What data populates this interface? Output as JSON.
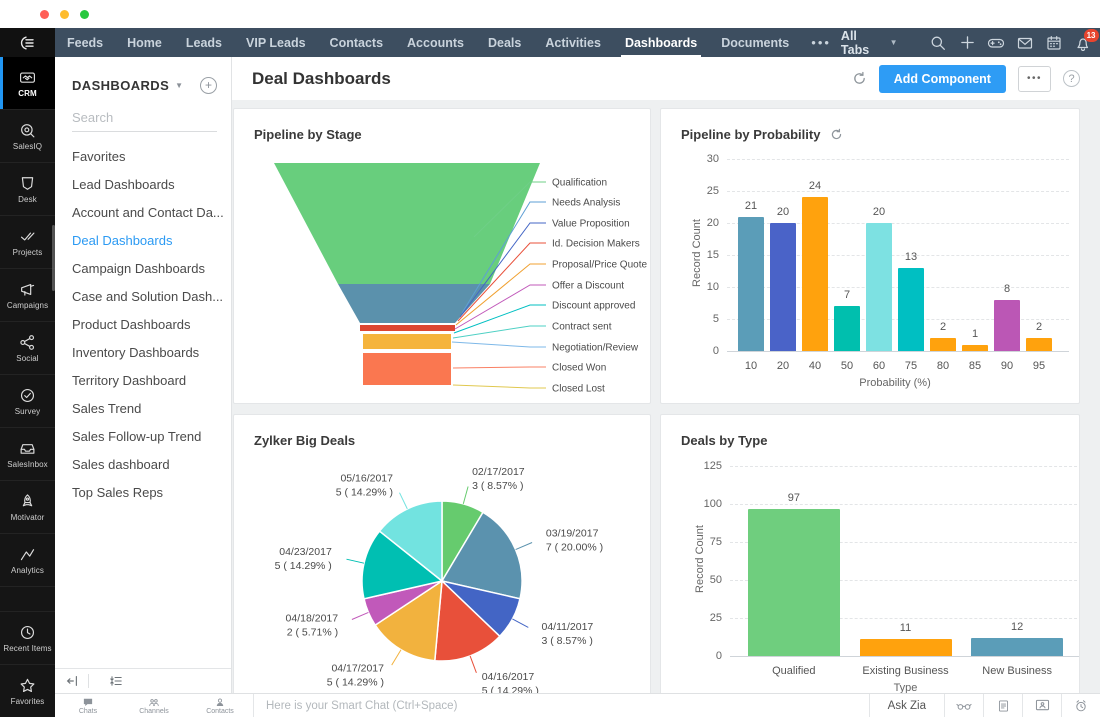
{
  "colors": {
    "accent_blue": "#2e9cf5",
    "nav_bg": "#3d4e60",
    "active_link": "#2b9af3"
  },
  "nav": {
    "tabs": [
      "Feeds",
      "Home",
      "Leads",
      "VIP Leads",
      "Contacts",
      "Accounts",
      "Deals",
      "Activities",
      "Dashboards",
      "Documents"
    ],
    "active_tab": "Dashboards",
    "more": "•••",
    "all_tabs": "All Tabs",
    "notification_count": "13"
  },
  "app_sidebar": {
    "items": [
      {
        "label": "CRM",
        "icon": "crm-icon",
        "active": true
      },
      {
        "label": "SalesIQ",
        "icon": "salesiq-icon"
      },
      {
        "label": "Desk",
        "icon": "desk-icon"
      },
      {
        "label": "Projects",
        "icon": "projects-icon"
      },
      {
        "label": "Campaigns",
        "icon": "campaigns-icon"
      },
      {
        "label": "Social",
        "icon": "social-icon"
      },
      {
        "label": "Survey",
        "icon": "survey-icon"
      },
      {
        "label": "SalesInbox",
        "icon": "salesinbox-icon"
      },
      {
        "label": "Motivator",
        "icon": "motivator-icon"
      },
      {
        "label": "Analytics",
        "icon": "analytics-icon"
      }
    ],
    "footer_items": [
      {
        "label": "Recent Items",
        "icon": "recent-items-icon"
      },
      {
        "label": "Favorites",
        "icon": "favorites-icon"
      }
    ]
  },
  "dashboards_sidebar": {
    "title": "DASHBOARDS",
    "search_placeholder": "Search",
    "items": [
      {
        "label": "Favorites"
      },
      {
        "label": "Lead Dashboards"
      },
      {
        "label": "Account and Contact Da..."
      },
      {
        "label": "Deal Dashboards",
        "active": true
      },
      {
        "label": "Campaign Dashboards"
      },
      {
        "label": "Case and Solution Dash..."
      },
      {
        "label": "Product Dashboards"
      },
      {
        "label": "Inventory Dashboards"
      },
      {
        "label": "Territory Dashboard"
      },
      {
        "label": "Sales Trend"
      },
      {
        "label": "Sales Follow-up Trend"
      },
      {
        "label": "Sales dashboard"
      },
      {
        "label": "Top Sales Reps"
      }
    ]
  },
  "header": {
    "title": "Deal Dashboards",
    "add_component": "Add Component",
    "more": "•••",
    "help": "?"
  },
  "chat_bar": {
    "tools": [
      {
        "label": "Chats",
        "icon": "chat-bubble-icon"
      },
      {
        "label": "Channels",
        "icon": "channels-icon"
      },
      {
        "label": "Contacts",
        "icon": "contacts-icon"
      }
    ],
    "input_placeholder": "Here is your Smart Chat (Ctrl+Space)",
    "ask_zia": "Ask Zia",
    "right_icons": [
      "zia-glasses-icon",
      "document-icon",
      "presentation-icon",
      "reminder-icon"
    ]
  },
  "chart_data": [
    {
      "type": "funnel",
      "title": "Pipeline by Stage",
      "stages": [
        {
          "label": "Qualification",
          "color": "#6fcf87"
        },
        {
          "label": "Needs Analysis",
          "color": "#5e9fd4"
        },
        {
          "label": "Value Proposition",
          "color": "#4365c5"
        },
        {
          "label": "Id. Decision Makers",
          "color": "#e8503a"
        },
        {
          "label": "Proposal/Price Quote",
          "color": "#f0a030"
        },
        {
          "label": "Offer a Discount",
          "color": "#c159ba"
        },
        {
          "label": "Discount approved",
          "color": "#00bfc2"
        },
        {
          "label": "Contract sent",
          "color": "#4ed0c4"
        },
        {
          "label": "Negotiation/Review",
          "color": "#7db8e8"
        },
        {
          "label": "Closed Won",
          "color": "#fa8064"
        },
        {
          "label": "Closed Lost",
          "color": "#e0c84f"
        }
      ],
      "band_colors": [
        "#68ce7d",
        "#5b91ac",
        "#dd4632",
        "#f5b43c",
        "#fa7750"
      ]
    },
    {
      "type": "bar",
      "title": "Pipeline by Probability",
      "xlabel": "Probability (%)",
      "ylabel": "Record Count",
      "categories": [
        "10",
        "20",
        "40",
        "50",
        "60",
        "75",
        "80",
        "85",
        "90",
        "95"
      ],
      "values": [
        21,
        20,
        24,
        7,
        20,
        13,
        2,
        1,
        8,
        2
      ],
      "colors": [
        "#5b9db8",
        "#4a63c8",
        "#ffa20d",
        "#00bfae",
        "#7de1e2",
        "#00bfc2",
        "#ffa20d",
        "#ffa20d",
        "#bb57b5",
        "#ffa20d"
      ],
      "ylim": [
        0,
        30
      ],
      "yticks": [
        0,
        5,
        10,
        15,
        20,
        25,
        30
      ],
      "grid": "dashed",
      "has_refresh": true
    },
    {
      "type": "pie",
      "title": "Zylker Big Deals",
      "slices": [
        {
          "label": "02/17/2017",
          "value": 3,
          "pct": "8.57%",
          "color": "#66cb6e"
        },
        {
          "label": "03/19/2017",
          "value": 7,
          "pct": "20.00%",
          "color": "#5b92ae"
        },
        {
          "label": "04/11/2017",
          "value": 3,
          "pct": "8.57%",
          "color": "#4365c5"
        },
        {
          "label": "04/16/2017",
          "value": 5,
          "pct": "14.29%",
          "color": "#e8503a"
        },
        {
          "label": "04/17/2017",
          "value": 5,
          "pct": "14.29%",
          "color": "#f2b23e"
        },
        {
          "label": "04/18/2017",
          "value": 2,
          "pct": "5.71%",
          "color": "#c159ba"
        },
        {
          "label": "04/23/2017",
          "value": 5,
          "pct": "14.29%",
          "color": "#00bfb2"
        },
        {
          "label": "05/16/2017",
          "value": 5,
          "pct": "14.29%",
          "color": "#72e3e0"
        }
      ],
      "total": 35
    },
    {
      "type": "bar",
      "title": "Deals by Type",
      "xlabel": "Type",
      "ylabel": "Record Count",
      "categories": [
        "Qualified",
        "Existing Business",
        "New Business"
      ],
      "values": [
        97,
        11,
        12
      ],
      "colors": [
        "#6fce7e",
        "#ffa20d",
        "#5b9db8"
      ],
      "ylim": [
        0,
        125
      ],
      "yticks": [
        0,
        25,
        50,
        75,
        100,
        125
      ],
      "grid": "dashed"
    }
  ]
}
